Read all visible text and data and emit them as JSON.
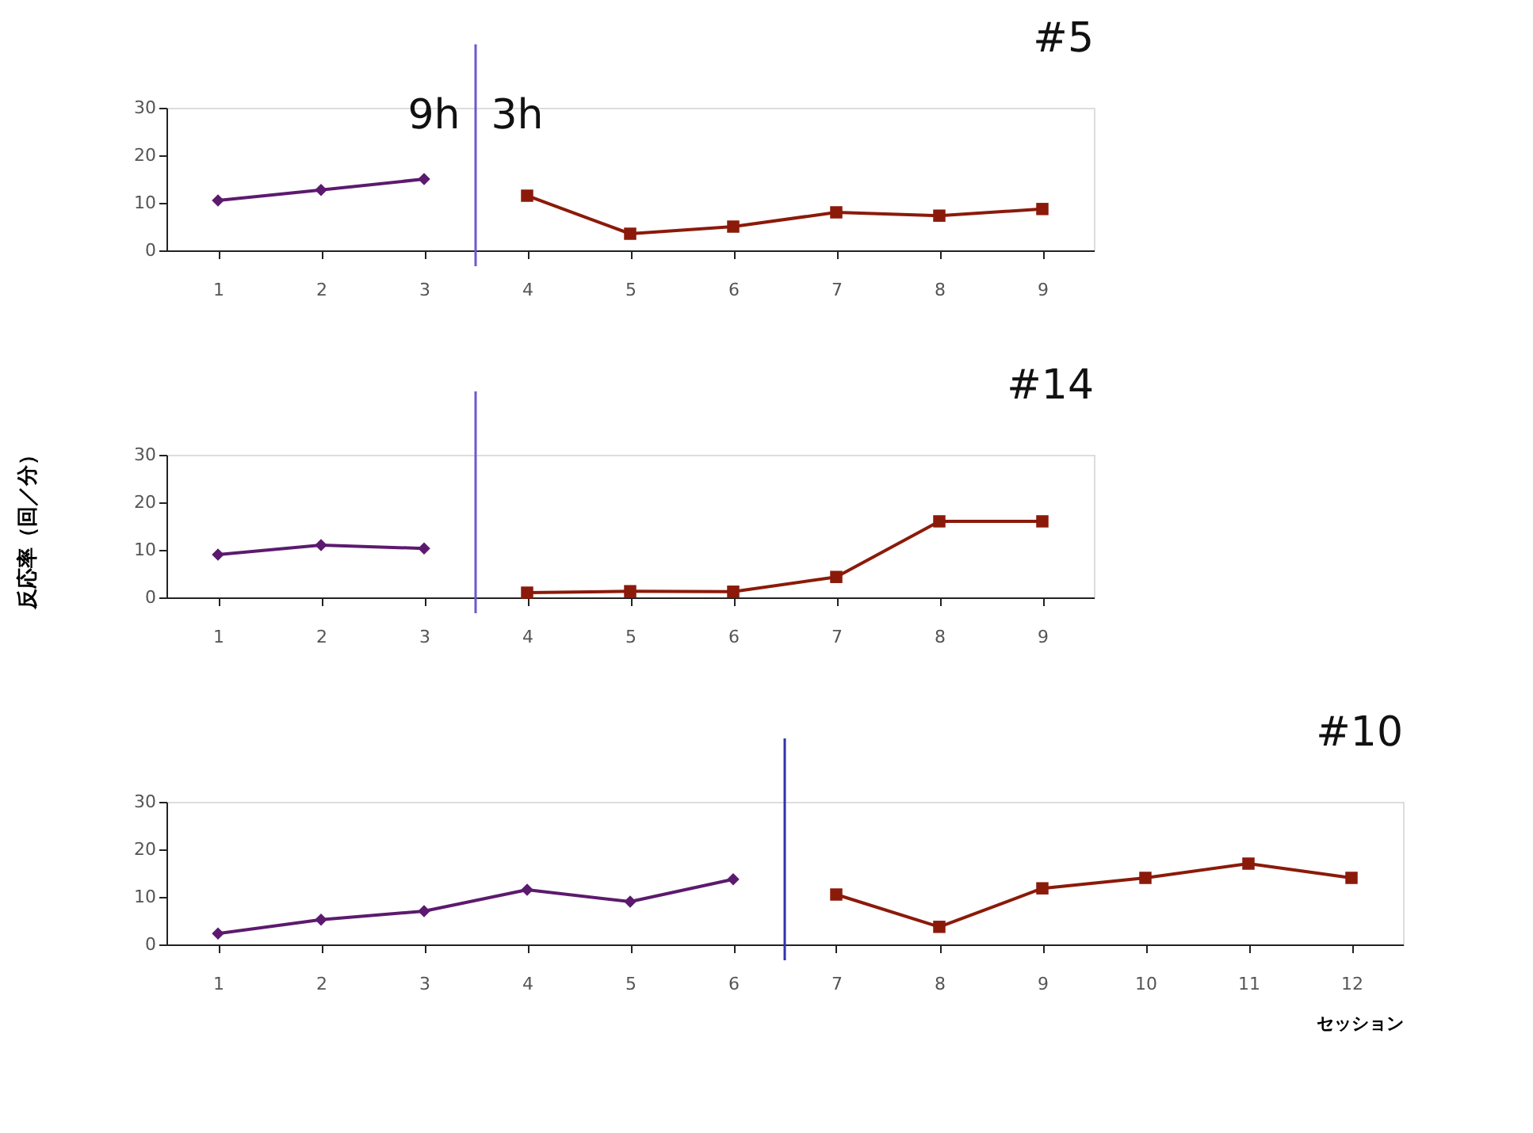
{
  "chart_data": [
    {
      "type": "line",
      "title": "#5",
      "xlim": [
        0.5,
        9.5
      ],
      "xticks": [
        1,
        2,
        3,
        4,
        5,
        6,
        7,
        8,
        9
      ],
      "ylim": [
        0,
        30
      ],
      "yticks": [
        0,
        10,
        20,
        30
      ],
      "grid": false,
      "series": [
        {
          "color": "#5c1a6e",
          "marker": "diamond",
          "x": [
            1,
            2,
            3
          ],
          "values": [
            10.5,
            12.7,
            15
          ]
        },
        {
          "color": "#8b1a0a",
          "marker": "square",
          "x": [
            4,
            5,
            6,
            7,
            8,
            9
          ],
          "values": [
            11.5,
            3.5,
            5,
            8,
            7.3,
            8.7
          ]
        }
      ],
      "ref_lines": [
        {
          "axis": "x",
          "value": 3.5,
          "color": "#6a5acd"
        }
      ],
      "annotations": [
        "9h",
        "3h"
      ]
    },
    {
      "type": "line",
      "title": "#14",
      "ylabel": "反応率（回／分）",
      "xlim": [
        0.5,
        9.5
      ],
      "xticks": [
        1,
        2,
        3,
        4,
        5,
        6,
        7,
        8,
        9
      ],
      "ylim": [
        0,
        30
      ],
      "yticks": [
        0,
        10,
        20,
        30
      ],
      "grid": false,
      "series": [
        {
          "color": "#5c1a6e",
          "marker": "diamond",
          "x": [
            1,
            2,
            3
          ],
          "values": [
            9,
            11,
            10.3
          ]
        },
        {
          "color": "#8b1a0a",
          "marker": "square",
          "x": [
            4,
            5,
            6,
            7,
            8,
            9
          ],
          "values": [
            1,
            1.3,
            1.2,
            4.3,
            16,
            16
          ]
        }
      ],
      "ref_lines": [
        {
          "axis": "x",
          "value": 3.5,
          "color": "#6a5acd"
        }
      ]
    },
    {
      "type": "line",
      "title": "#10",
      "xlabel": "セッション",
      "xlim": [
        0.5,
        12.5
      ],
      "xticks": [
        1,
        2,
        3,
        4,
        5,
        6,
        7,
        8,
        9,
        10,
        11,
        12
      ],
      "ylim": [
        0,
        30
      ],
      "yticks": [
        0,
        10,
        20,
        30
      ],
      "grid": false,
      "series": [
        {
          "color": "#5c1a6e",
          "marker": "diamond",
          "x": [
            1,
            2,
            3,
            4,
            5,
            6
          ],
          "values": [
            2.3,
            5.2,
            7,
            11.5,
            9,
            13.7
          ]
        },
        {
          "color": "#8b1a0a",
          "marker": "square",
          "x": [
            7,
            8,
            9,
            10,
            11,
            12
          ],
          "values": [
            10.5,
            3.7,
            11.8,
            14,
            17,
            14
          ]
        }
      ],
      "ref_lines": [
        {
          "axis": "x",
          "value": 6.5,
          "color": "#3333aa"
        }
      ]
    }
  ]
}
